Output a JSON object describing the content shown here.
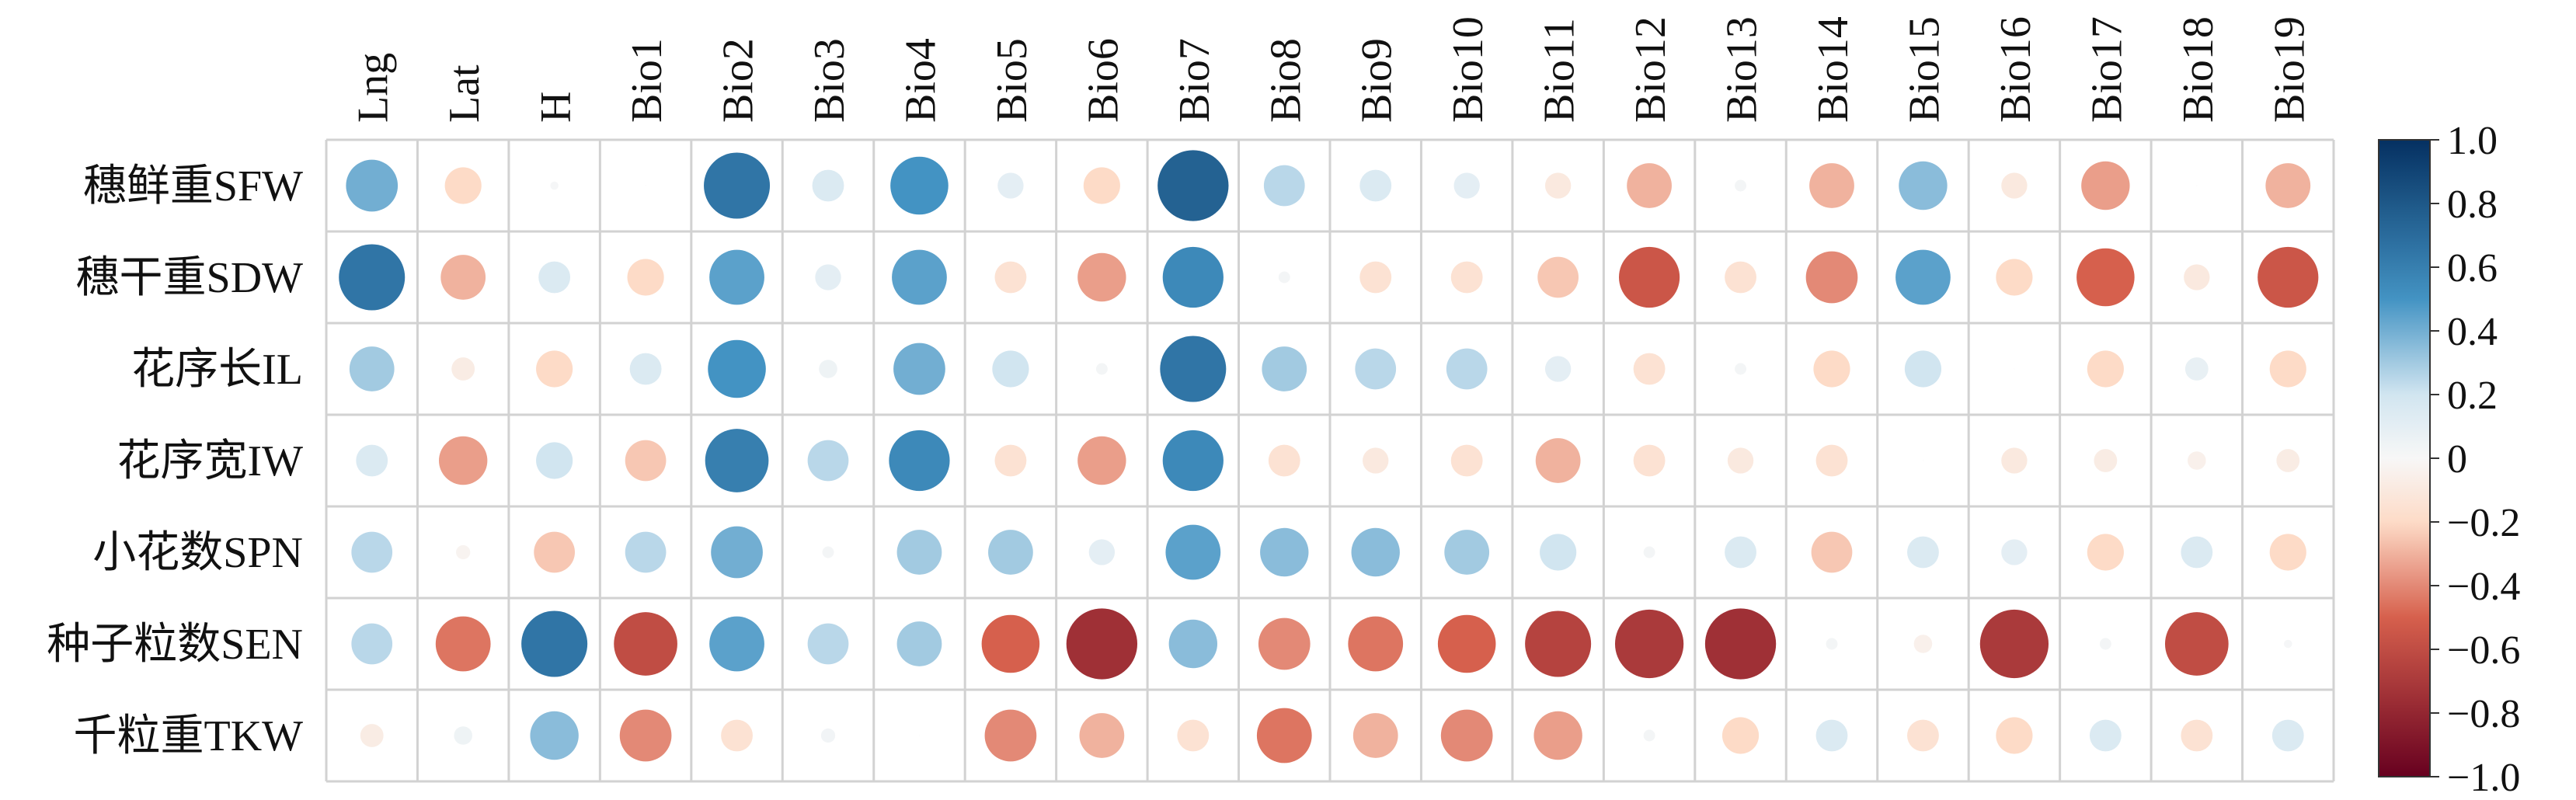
{
  "chart_data": {
    "type": "heatmap",
    "title": "",
    "columns": [
      "Lng",
      "Lat",
      "H",
      "Bio1",
      "Bio2",
      "Bio3",
      "Bio4",
      "Bio5",
      "Bio6",
      "Bio7",
      "Bio8",
      "Bio9",
      "Bio10",
      "Bio11",
      "Bio12",
      "Bio13",
      "Bio14",
      "Bio15",
      "Bio16",
      "Bio17",
      "Bio18",
      "Bio19"
    ],
    "rows": [
      "穗鲜重SFW",
      "穗干重SDW",
      "花序长IL",
      "花序宽IW",
      "小花数SPN",
      "种子粒数SEN",
      "千粒重TKW"
    ],
    "values": [
      [
        0.4,
        -0.2,
        0.01,
        0.0,
        0.65,
        0.15,
        0.5,
        0.1,
        -0.2,
        0.75,
        0.25,
        0.15,
        0.1,
        -0.1,
        -0.3,
        0.02,
        -0.3,
        0.35,
        -0.1,
        -0.35,
        0.0,
        -0.3
      ],
      [
        0.65,
        -0.3,
        0.15,
        -0.2,
        0.45,
        0.1,
        0.45,
        -0.15,
        -0.35,
        0.55,
        0.02,
        -0.15,
        -0.15,
        -0.25,
        -0.55,
        -0.15,
        -0.4,
        0.45,
        -0.2,
        -0.5,
        -0.1,
        -0.55
      ],
      [
        0.3,
        -0.08,
        -0.2,
        0.15,
        0.5,
        0.05,
        0.4,
        0.2,
        0.02,
        0.65,
        0.3,
        0.25,
        0.25,
        0.1,
        -0.15,
        0.02,
        -0.2,
        0.2,
        0.0,
        -0.2,
        0.08,
        -0.2
      ],
      [
        0.15,
        -0.35,
        0.2,
        -0.25,
        0.6,
        0.25,
        0.55,
        -0.15,
        -0.35,
        0.55,
        -0.15,
        -0.1,
        -0.15,
        -0.3,
        -0.15,
        -0.1,
        -0.15,
        0.0,
        -0.1,
        -0.08,
        -0.05,
        -0.08
      ],
      [
        0.25,
        -0.03,
        -0.25,
        0.25,
        0.4,
        0.02,
        0.3,
        0.3,
        0.1,
        0.45,
        0.35,
        0.35,
        0.3,
        0.2,
        0.02,
        0.15,
        -0.25,
        0.15,
        0.1,
        -0.2,
        0.15,
        -0.2
      ],
      [
        0.25,
        -0.45,
        0.65,
        -0.6,
        0.45,
        0.25,
        0.3,
        -0.5,
        -0.75,
        0.35,
        -0.4,
        -0.45,
        -0.5,
        -0.65,
        -0.7,
        -0.75,
        0.02,
        -0.05,
        -0.7,
        0.02,
        -0.6,
        0.01
      ],
      [
        -0.08,
        0.05,
        0.35,
        -0.4,
        -0.15,
        0.03,
        0.0,
        -0.4,
        -0.3,
        -0.15,
        -0.45,
        -0.3,
        -0.4,
        -0.35,
        0.02,
        -0.2,
        0.15,
        -0.15,
        -0.2,
        0.15,
        -0.15,
        0.15
      ]
    ],
    "legend": {
      "ticks": [
        1.0,
        0.8,
        0.6,
        0.4,
        0.2,
        0,
        -0.2,
        -0.4,
        -0.6,
        -0.8,
        -1.0
      ],
      "tick_labels": [
        "1.0",
        "0.8",
        "0.6",
        "0.4",
        "0.2",
        "0",
        "−0.2",
        "−0.4",
        "−0.6",
        "−0.8",
        "−1.0"
      ],
      "range": [
        -1.0,
        1.0
      ],
      "placement": "right"
    },
    "grid": true,
    "colors": {
      "neg_strong": "#67001f",
      "neg_mid": "#d6604d",
      "neg_light": "#fddbc7",
      "zero": "#f7f7f7",
      "pos_light": "#d1e5f0",
      "pos_mid": "#4393c3",
      "pos_strong": "#053061",
      "grid": "#d2d2d2"
    }
  }
}
